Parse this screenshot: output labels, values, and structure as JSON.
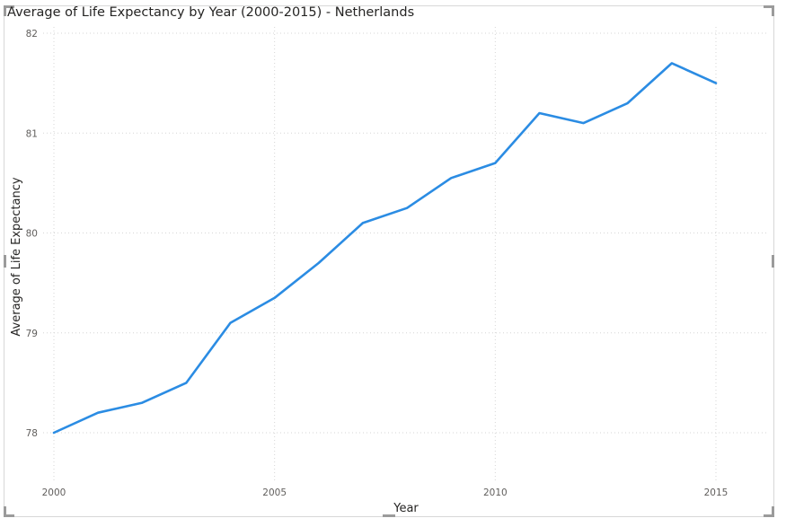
{
  "chart_data": {
    "type": "line",
    "title": "Average of Life Expectancy by Year (2000-2015) - Netherlands",
    "xlabel": "Year",
    "ylabel": "Average of Life Expectancy",
    "xlim": [
      2000,
      2015
    ],
    "ylim": [
      78,
      82
    ],
    "x_ticks": [
      "2000",
      "2005",
      "2010",
      "2015"
    ],
    "y_ticks": [
      "78",
      "79",
      "80",
      "81",
      "82"
    ],
    "grid": true,
    "legend": "none",
    "series": [
      {
        "color": "#2b8ce3",
        "x": [
          2000,
          2001,
          2002,
          2003,
          2004,
          2005,
          2006,
          2007,
          2008,
          2009,
          2010,
          2011,
          2012,
          2013,
          2014,
          2015
        ],
        "y": [
          78.0,
          78.2,
          78.3,
          78.5,
          79.1,
          79.35,
          79.7,
          80.1,
          80.25,
          80.55,
          80.7,
          81.2,
          81.1,
          81.3,
          81.7,
          81.5
        ]
      }
    ]
  }
}
